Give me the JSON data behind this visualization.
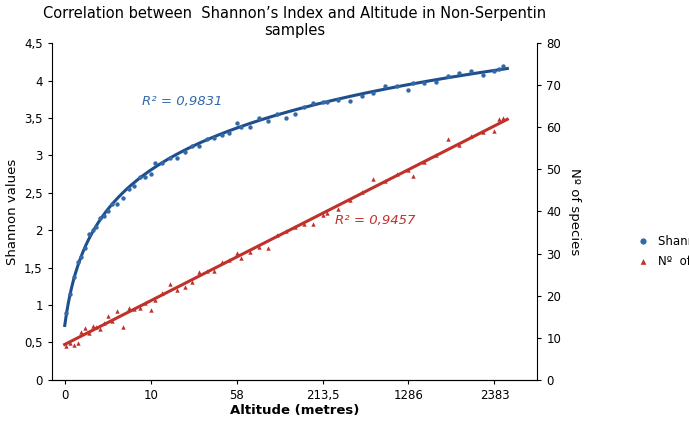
{
  "title": "Correlation between  Shannon’s Index and Altitude in Non-Serpentin\nsamples",
  "xlabel": "Altitude (metres)",
  "ylabel_left": "Shannon values",
  "ylabel_right": "Nº of species",
  "xtick_labels": [
    "0",
    "10",
    "58",
    "213,5",
    "1286",
    "2383"
  ],
  "xtick_positions": [
    0,
    1,
    2,
    3,
    4,
    5
  ],
  "xlim": [
    -0.15,
    5.5
  ],
  "ylim_left": [
    0,
    4.5
  ],
  "ylim_right": [
    0,
    80
  ],
  "yticks_left": [
    0,
    0.5,
    1,
    1.5,
    2,
    2.5,
    3,
    3.5,
    4,
    4.5
  ],
  "yticks_right": [
    0,
    10,
    20,
    30,
    40,
    50,
    60,
    70,
    80
  ],
  "blue_r2": "R² = 0,9831",
  "red_r2": "R² = 0,9457",
  "legend_blue": "Shannon index mean",
  "legend_red": "Nº  of species",
  "blue_color": "#3469A8",
  "red_color": "#C0312B",
  "blue_line_color": "#1F4E8C",
  "red_line_color": "#C0312B",
  "blue_a": 0.87,
  "blue_b": 0.1,
  "blue_c": 2.72,
  "red_slope": 0.585,
  "red_intercept": 0.47,
  "scale_factor": 0.05625,
  "figsize": [
    6.89,
    4.23
  ],
  "dpi": 100,
  "bg_color": "#FFFFFF"
}
